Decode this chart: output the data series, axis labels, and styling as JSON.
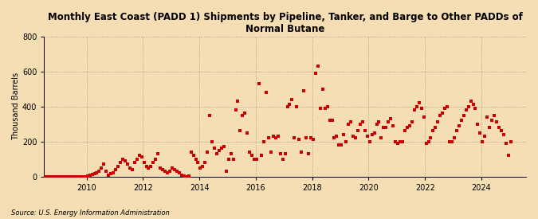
{
  "title": "Monthly East Coast (PADD 1) Shipments by Pipeline, Tanker, and Barge to Other PADDs of\nNormal Butane",
  "ylabel": "Thousand Barrels",
  "source": "Source: U.S. Energy Information Administration",
  "background_color": "#f5deb3",
  "plot_bg_color": "#f5deb3",
  "dot_color": "#cc0000",
  "ylim": [
    0,
    800
  ],
  "yticks": [
    0,
    200,
    400,
    600,
    800
  ],
  "start_year": 2008,
  "start_month": 5,
  "data": [
    0,
    0,
    0,
    0,
    0,
    0,
    0,
    0,
    0,
    0,
    0,
    0,
    0,
    0,
    0,
    0,
    0,
    0,
    0,
    0,
    5,
    8,
    12,
    15,
    20,
    30,
    50,
    70,
    30,
    10,
    15,
    20,
    40,
    60,
    80,
    100,
    90,
    70,
    50,
    40,
    80,
    100,
    120,
    110,
    80,
    60,
    50,
    60,
    80,
    100,
    130,
    50,
    40,
    30,
    20,
    30,
    50,
    40,
    30,
    20,
    10,
    5,
    0,
    5,
    140,
    120,
    100,
    80,
    50,
    60,
    80,
    140,
    350,
    200,
    160,
    130,
    150,
    160,
    170,
    30,
    100,
    130,
    100,
    380,
    430,
    260,
    350,
    360,
    250,
    140,
    120,
    100,
    100,
    530,
    120,
    200,
    480,
    220,
    140,
    230,
    220,
    230,
    130,
    100,
    130,
    400,
    410,
    440,
    220,
    400,
    210,
    140,
    490,
    220,
    130,
    220,
    210,
    590,
    630,
    390,
    500,
    390,
    400,
    320,
    320,
    220,
    230,
    180,
    180,
    240,
    200,
    300,
    310,
    230,
    220,
    260,
    300,
    310,
    260,
    230,
    200,
    240,
    250,
    300,
    310,
    220,
    280,
    280,
    310,
    330,
    290,
    200,
    190,
    200,
    200,
    260,
    280,
    290,
    310,
    380,
    400,
    420,
    390,
    340,
    190,
    200,
    220,
    260,
    280,
    310,
    350,
    360,
    390,
    400,
    200,
    200,
    220,
    260,
    290,
    320,
    350,
    380,
    400,
    430,
    410,
    390,
    300,
    250,
    200,
    230,
    340,
    280,
    320,
    350,
    310,
    280,
    260,
    240,
    190,
    120,
    200
  ]
}
